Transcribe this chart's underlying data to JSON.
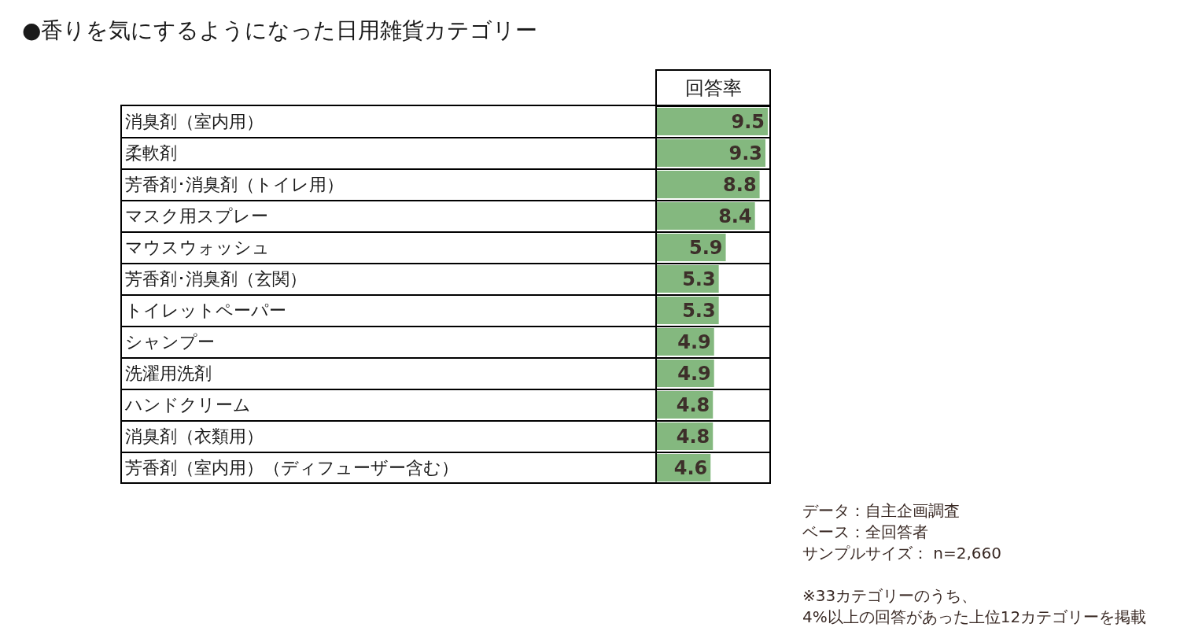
{
  "chart_data": {
    "type": "bar",
    "orientation": "horizontal",
    "title": "●香りを気にするようになった日用雑貨カテゴリー",
    "xlabel": "回答率",
    "categories": [
      "消臭剤（室内用）",
      "柔軟剤",
      "芳香剤･消臭剤（トイレ用）",
      "マスク用スプレー",
      "マウスウォッシュ",
      "芳香剤･消臭剤（玄関）",
      "トイレットペーパー",
      "シャンプー",
      "洗濯用洗剤",
      "ハンドクリーム",
      "消臭剤（衣類用）",
      "芳香剤（室内用）（ディフューザー含む）"
    ],
    "values": [
      9.5,
      9.3,
      8.8,
      8.4,
      5.9,
      5.3,
      5.3,
      4.9,
      4.9,
      4.8,
      4.8,
      4.6
    ],
    "color": "#84b87f",
    "xlim": [
      0,
      9.5
    ],
    "tick_labels": false,
    "data_labels": true,
    "annotations": [
      "データ：自主企画調査",
      "ベース：全回答者",
      "サンプルサイズ： n=2,660",
      "※33カテゴリーのうち、\n4%以上の回答があった上位12カテゴリーを掲載"
    ]
  }
}
